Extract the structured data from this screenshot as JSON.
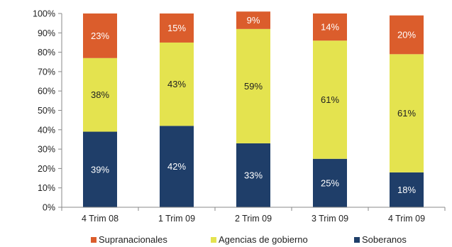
{
  "chart_data": {
    "type": "bar",
    "stacked": true,
    "categories": [
      "4 Trim 08",
      "1 Trim 09",
      "2 Trim 09",
      "3 Trim 09",
      "4 Trim 09"
    ],
    "series": [
      {
        "name": "Soberanos",
        "color": "#1f3e69",
        "values": [
          39,
          42,
          33,
          25,
          18
        ]
      },
      {
        "name": "Agencias de gobierno",
        "color": "#e4e34f",
        "values": [
          38,
          43,
          59,
          61,
          61
        ]
      },
      {
        "name": "Supranacionales",
        "color": "#db5d2c",
        "values": [
          23,
          15,
          9,
          14,
          20
        ]
      }
    ],
    "ylim": [
      0,
      100
    ],
    "yticks": [
      "0%",
      "10%",
      "20%",
      "30%",
      "40%",
      "50%",
      "60%",
      "70%",
      "80%",
      "90%",
      "100%"
    ],
    "data_labels": [
      [
        "39%",
        "42%",
        "33%",
        "25%",
        "18%"
      ],
      [
        "38%",
        "43%",
        "59%",
        "61%",
        "61%"
      ],
      [
        "23%",
        "15%",
        "9%",
        "14%",
        "20%"
      ]
    ],
    "legend": {
      "position": "bottom",
      "order": [
        "Supranacionales",
        "Agencias de gobierno",
        "Soberanos"
      ]
    },
    "grid": false
  }
}
